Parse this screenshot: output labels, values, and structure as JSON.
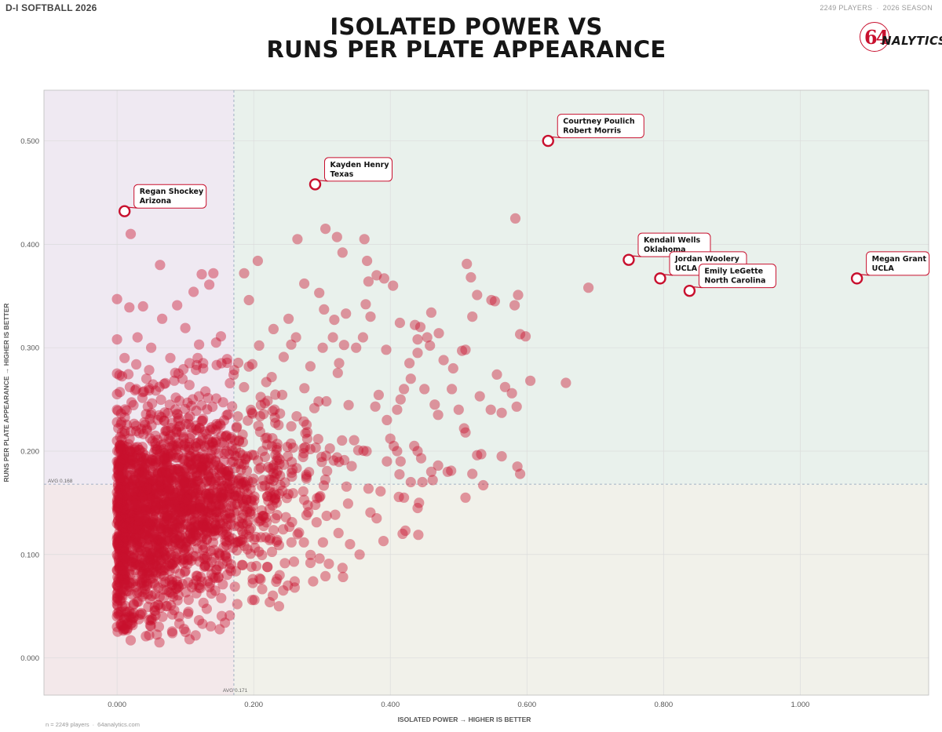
{
  "header": {
    "league": "D-I SOFTBALL 2026",
    "players": "2249 PLAYERS",
    "season": "2026 SEASON",
    "title_line1": "ISOLATED POWER VS",
    "title_line2": "RUNS PER PLATE APPEARANCE",
    "logo_number": "64",
    "logo_word": "NALYTICS"
  },
  "footer": {
    "count": "n = 2249 players",
    "site": "64analytics.com"
  },
  "colors": {
    "accent": "#c8102e",
    "q_top_left": "#efe9f2",
    "q_top_right": "#e9f1ec",
    "q_bottom_left": "#f3e8ea",
    "q_bottom_right": "#f1f1ea"
  },
  "chart_data": {
    "type": "scatter",
    "title": "ISOLATED POWER VS RUNS PER PLATE APPEARANCE",
    "xlabel": "ISOLATED POWER → HIGHER IS BETTER",
    "ylabel": "RUNS PER PLATE APPEARANCE → HIGHER IS BETTER",
    "xlim": [
      -0.107,
      1.188
    ],
    "ylim": [
      -0.036,
      0.549
    ],
    "x_ticks": [
      0.0,
      0.2,
      0.4,
      0.6,
      0.8,
      1.0
    ],
    "x_tick_labels": [
      "0.000",
      "0.200",
      "0.400",
      "0.600",
      "0.800",
      "1.000"
    ],
    "y_ticks": [
      0.0,
      0.1,
      0.2,
      0.3,
      0.4,
      0.5
    ],
    "y_tick_labels": [
      "0.000",
      "0.100",
      "0.200",
      "0.300",
      "0.400",
      "0.500"
    ],
    "grid": true,
    "n_points": 2249,
    "avg_x": 0.171,
    "avg_y": 0.168,
    "avg_x_label": "AVG 0.171",
    "avg_y_label": "AVG 0.168",
    "highlighted": [
      {
        "name": "Courtney Poulich",
        "team": "Robert Morris",
        "x": 0.631,
        "y": 0.5
      },
      {
        "name": "Kayden Henry",
        "team": "Texas",
        "x": 0.29,
        "y": 0.458
      },
      {
        "name": "Regan Shockey",
        "team": "Arizona",
        "x": 0.011,
        "y": 0.432
      },
      {
        "name": "Kendall Wells",
        "team": "Oklahoma",
        "x": 0.749,
        "y": 0.385
      },
      {
        "name": "Jordan Woolery",
        "team": "UCLA",
        "x": 0.795,
        "y": 0.367
      },
      {
        "name": "Emily LeGette",
        "team": "North Carolina",
        "x": 0.838,
        "y": 0.355
      },
      {
        "name": "Megan Grant",
        "team": "UCLA",
        "x": 1.083,
        "y": 0.367
      }
    ],
    "points": [
      [
        0.02,
        0.41
      ],
      [
        0.063,
        0.38
      ],
      [
        0.0,
        0.347
      ],
      [
        0.038,
        0.34
      ],
      [
        0.018,
        0.339
      ],
      [
        0.088,
        0.341
      ],
      [
        0.0,
        0.308
      ],
      [
        0.124,
        0.371
      ],
      [
        0.141,
        0.372
      ],
      [
        0.135,
        0.361
      ],
      [
        0.112,
        0.354
      ],
      [
        0.066,
        0.328
      ],
      [
        0.1,
        0.319
      ],
      [
        0.12,
        0.303
      ],
      [
        0.145,
        0.305
      ],
      [
        0.152,
        0.311
      ],
      [
        0.078,
        0.29
      ],
      [
        0.05,
        0.3
      ],
      [
        0.03,
        0.31
      ],
      [
        0.011,
        0.29
      ],
      [
        0.118,
        0.29
      ],
      [
        0.106,
        0.285
      ],
      [
        0.126,
        0.285
      ],
      [
        0.09,
        0.275
      ],
      [
        0.069,
        0.265
      ],
      [
        0.043,
        0.27
      ],
      [
        0.028,
        0.26
      ],
      [
        0.0,
        0.275
      ],
      [
        0.0,
        0.255
      ],
      [
        0.0,
        0.24
      ],
      [
        0.0,
        0.228
      ],
      [
        0.0,
        0.21
      ],
      [
        0.0,
        0.19
      ],
      [
        0.0,
        0.175
      ],
      [
        0.0,
        0.16
      ],
      [
        0.0,
        0.145
      ],
      [
        0.0,
        0.13
      ],
      [
        0.0,
        0.115
      ],
      [
        0.0,
        0.1
      ],
      [
        0.0,
        0.085
      ],
      [
        0.0,
        0.07
      ],
      [
        0.0,
        0.055
      ],
      [
        0.0,
        0.04
      ],
      [
        0.0,
        0.03
      ],
      [
        0.022,
        0.034
      ],
      [
        0.047,
        0.022
      ],
      [
        0.062,
        0.015
      ],
      [
        0.081,
        0.024
      ],
      [
        0.098,
        0.028
      ],
      [
        0.125,
        0.033
      ],
      [
        0.158,
        0.034
      ],
      [
        0.02,
        0.017
      ],
      [
        0.106,
        0.018
      ],
      [
        0.165,
        0.041
      ],
      [
        0.176,
        0.052
      ],
      [
        0.198,
        0.056
      ],
      [
        0.237,
        0.05
      ],
      [
        0.26,
        0.068
      ],
      [
        0.206,
        0.384
      ],
      [
        0.264,
        0.405
      ],
      [
        0.305,
        0.415
      ],
      [
        0.33,
        0.392
      ],
      [
        0.322,
        0.407
      ],
      [
        0.362,
        0.405
      ],
      [
        0.366,
        0.384
      ],
      [
        0.368,
        0.364
      ],
      [
        0.274,
        0.362
      ],
      [
        0.296,
        0.353
      ],
      [
        0.186,
        0.372
      ],
      [
        0.193,
        0.346
      ],
      [
        0.364,
        0.342
      ],
      [
        0.38,
        0.37
      ],
      [
        0.391,
        0.367
      ],
      [
        0.404,
        0.36
      ],
      [
        0.303,
        0.337
      ],
      [
        0.251,
        0.328
      ],
      [
        0.318,
        0.327
      ],
      [
        0.335,
        0.333
      ],
      [
        0.371,
        0.33
      ],
      [
        0.414,
        0.324
      ],
      [
        0.436,
        0.322
      ],
      [
        0.46,
        0.334
      ],
      [
        0.444,
        0.32
      ],
      [
        0.454,
        0.31
      ],
      [
        0.316,
        0.31
      ],
      [
        0.262,
        0.31
      ],
      [
        0.229,
        0.318
      ],
      [
        0.255,
        0.303
      ],
      [
        0.301,
        0.3
      ],
      [
        0.325,
        0.285
      ],
      [
        0.35,
        0.3
      ],
      [
        0.36,
        0.31
      ],
      [
        0.394,
        0.298
      ],
      [
        0.44,
        0.308
      ],
      [
        0.458,
        0.302
      ],
      [
        0.471,
        0.314
      ],
      [
        0.478,
        0.288
      ],
      [
        0.492,
        0.28
      ],
      [
        0.505,
        0.297
      ],
      [
        0.51,
        0.298
      ],
      [
        0.52,
        0.33
      ],
      [
        0.527,
        0.351
      ],
      [
        0.512,
        0.381
      ],
      [
        0.518,
        0.368
      ],
      [
        0.548,
        0.346
      ],
      [
        0.553,
        0.345
      ],
      [
        0.583,
        0.425
      ],
      [
        0.587,
        0.351
      ],
      [
        0.582,
        0.341
      ],
      [
        0.59,
        0.313
      ],
      [
        0.598,
        0.311
      ],
      [
        0.605,
        0.268
      ],
      [
        0.657,
        0.266
      ],
      [
        0.69,
        0.358
      ],
      [
        0.556,
        0.274
      ],
      [
        0.568,
        0.262
      ],
      [
        0.578,
        0.256
      ],
      [
        0.563,
        0.237
      ],
      [
        0.585,
        0.243
      ],
      [
        0.547,
        0.24
      ],
      [
        0.531,
        0.253
      ],
      [
        0.508,
        0.222
      ],
      [
        0.51,
        0.218
      ],
      [
        0.527,
        0.196
      ],
      [
        0.533,
        0.197
      ],
      [
        0.52,
        0.178
      ],
      [
        0.536,
        0.167
      ],
      [
        0.51,
        0.155
      ],
      [
        0.563,
        0.195
      ],
      [
        0.586,
        0.185
      ],
      [
        0.59,
        0.178
      ],
      [
        0.489,
        0.181
      ],
      [
        0.484,
        0.18
      ],
      [
        0.47,
        0.186
      ],
      [
        0.462,
        0.172
      ],
      [
        0.447,
        0.17
      ],
      [
        0.46,
        0.18
      ],
      [
        0.43,
        0.17
      ],
      [
        0.442,
        0.15
      ],
      [
        0.44,
        0.145
      ],
      [
        0.42,
        0.155
      ],
      [
        0.418,
        0.12
      ],
      [
        0.422,
        0.123
      ],
      [
        0.441,
        0.119
      ],
      [
        0.39,
        0.113
      ],
      [
        0.38,
        0.135
      ],
      [
        0.355,
        0.1
      ],
      [
        0.341,
        0.11
      ],
      [
        0.33,
        0.087
      ],
      [
        0.31,
        0.091
      ],
      [
        0.305,
        0.079
      ],
      [
        0.287,
        0.074
      ],
      [
        0.26,
        0.074
      ],
      [
        0.25,
        0.07
      ],
      [
        0.238,
        0.08
      ],
      [
        0.22,
        0.088
      ],
      [
        0.395,
        0.23
      ],
      [
        0.41,
        0.24
      ],
      [
        0.42,
        0.26
      ],
      [
        0.43,
        0.27
      ],
      [
        0.45,
        0.26
      ],
      [
        0.465,
        0.245
      ],
      [
        0.47,
        0.235
      ],
      [
        0.5,
        0.24
      ],
      [
        0.49,
        0.26
      ],
      [
        0.44,
        0.295
      ],
      [
        0.428,
        0.285
      ],
      [
        0.415,
        0.25
      ],
      [
        0.4,
        0.212
      ],
      [
        0.405,
        0.205
      ],
      [
        0.41,
        0.2
      ],
      [
        0.435,
        0.205
      ],
      [
        0.44,
        0.2
      ],
      [
        0.415,
        0.19
      ],
      [
        0.395,
        0.19
      ]
    ]
  }
}
